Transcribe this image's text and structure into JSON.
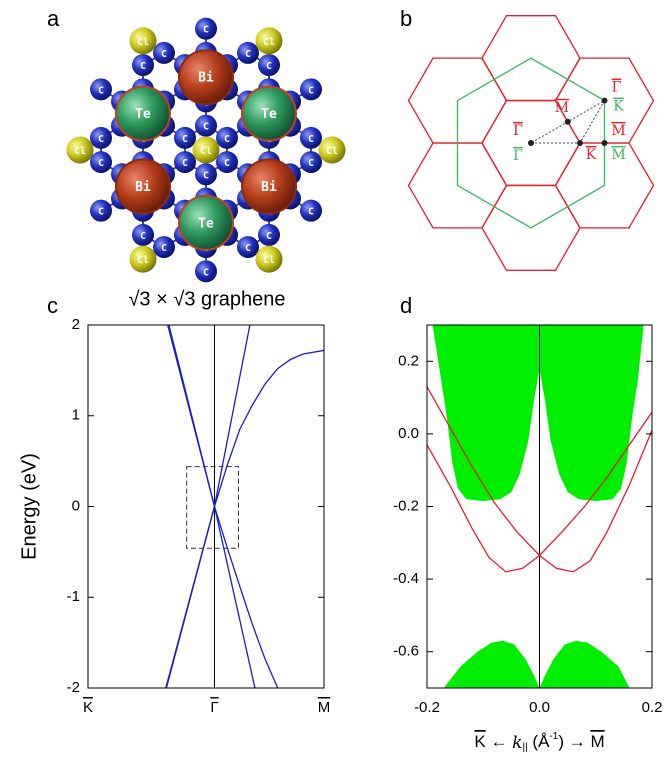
{
  "panel_a": {
    "letter": "a",
    "elements": [
      "Bi",
      "Te",
      "C",
      "Cl"
    ]
  },
  "panel_b": {
    "letter": "b",
    "red": "#e0202a",
    "green": "#3cb55a",
    "path_color": "#2c3ca0",
    "labels": [
      {
        "text": "Γ",
        "color": "#e0202a"
      },
      {
        "text": "Γ",
        "color": "#3cb55a"
      },
      {
        "text": "M",
        "color": "#e0202a"
      },
      {
        "text": "K",
        "color": "#e0202a"
      },
      {
        "text": "Γ",
        "color": "#e0202a"
      },
      {
        "text": "K",
        "color": "#3cb55a"
      },
      {
        "text": "M",
        "color": "#e0202a"
      },
      {
        "text": "M",
        "color": "#3cb55a"
      }
    ]
  },
  "chart_data": [
    {
      "type": "line",
      "letter": "c",
      "title": "√3 × √3 graphene",
      "ylabel": "Energy (eV)",
      "xlim": [
        -1,
        0.866
      ],
      "xticks": [
        {
          "value": -1,
          "label": "K"
        },
        {
          "value": 0,
          "label": "Γ"
        },
        {
          "value": 0.866,
          "label": "M"
        }
      ],
      "ylim": [
        -2,
        2
      ],
      "yticks": [
        -2,
        -1,
        0,
        1,
        2
      ],
      "vline": 0,
      "series": [
        {
          "color": "#1c1ccc",
          "x": [
            -0.37,
            0,
            0.32
          ],
          "values": [
            2,
            0,
            -2
          ]
        },
        {
          "color": "#1c1ccc",
          "x": [
            -0.385,
            0,
            0.28
          ],
          "values": [
            -2,
            0,
            2
          ]
        },
        {
          "color": "#1c1ccc",
          "x": [
            -0.36,
            0,
            0.1,
            0.2,
            0.3,
            0.4,
            0.5
          ],
          "values": [
            2,
            0,
            -0.45,
            -0.88,
            -1.3,
            -1.68,
            -2
          ]
        },
        {
          "color": "#1c1ccc",
          "x": [
            -0.38,
            0,
            0.1,
            0.2,
            0.3,
            0.4,
            0.5,
            0.6,
            0.7,
            0.866
          ],
          "values": [
            -2,
            0,
            0.45,
            0.85,
            1.12,
            1.35,
            1.52,
            1.62,
            1.68,
            1.72
          ]
        }
      ],
      "inset_box": {
        "x": [
          -0.22,
          0.19
        ],
        "y": [
          -0.46,
          0.44
        ]
      }
    },
    {
      "type": "line",
      "letter": "d",
      "xlabel": [
        "K",
        " ← ",
        "k",
        "||",
        " (Å",
        "-1",
        ") → ",
        "M"
      ],
      "xlim": [
        -0.2,
        0.2
      ],
      "xticks": [
        -0.2,
        {
          "value": 0,
          "label": "0.0"
        },
        0.2
      ],
      "ylim": [
        -0.7,
        0.3
      ],
      "yticks": [
        -0.6,
        -0.4,
        -0.2,
        {
          "value": 0,
          "label": "0.0"
        },
        0.2
      ],
      "vline": 0,
      "regions": [
        {
          "color": "#00ee00",
          "x": [
            -0.19,
            -0.175,
            -0.165,
            -0.155,
            -0.145,
            -0.13,
            -0.1,
            -0.07,
            -0.05,
            -0.035,
            -0.02,
            -0.01,
            0,
            0.01,
            0.02,
            0.035,
            0.05,
            0.07,
            0.1,
            0.13,
            0.145,
            0.155,
            0.165,
            0.175,
            0.185
          ],
          "y": [
            0.3,
            0.15,
            0.05,
            -0.08,
            -0.15,
            -0.18,
            -0.185,
            -0.18,
            -0.16,
            -0.11,
            -0.02,
            0.09,
            0.18,
            0.09,
            -0.02,
            -0.11,
            -0.16,
            -0.18,
            -0.185,
            -0.18,
            -0.15,
            -0.08,
            0.05,
            0.15,
            0.3
          ]
        },
        {
          "color": "#00ee00",
          "x": [
            -0.17,
            -0.14,
            -0.11,
            -0.085,
            -0.065,
            -0.045,
            -0.025,
            -0.01,
            0,
            0.01,
            0.025,
            0.045,
            0.065,
            0.085,
            0.11,
            0.14,
            0.16
          ],
          "y": [
            -0.7,
            -0.64,
            -0.6,
            -0.575,
            -0.57,
            -0.58,
            -0.62,
            -0.665,
            -0.7,
            -0.665,
            -0.62,
            -0.58,
            -0.57,
            -0.575,
            -0.6,
            -0.64,
            -0.7
          ]
        }
      ],
      "series": [
        {
          "color": "#e0202a",
          "x": [
            -0.2,
            -0.16,
            -0.12,
            -0.08,
            -0.04,
            0,
            0.03,
            0.06,
            0.09,
            0.12,
            0.16,
            0.2
          ],
          "values": [
            0.13,
            0.02,
            -0.09,
            -0.19,
            -0.27,
            -0.335,
            -0.37,
            -0.38,
            -0.35,
            -0.27,
            -0.14,
            0.01
          ]
        },
        {
          "color": "#e0202a",
          "x": [
            -0.2,
            -0.16,
            -0.12,
            -0.09,
            -0.06,
            -0.03,
            0,
            0.04,
            0.08,
            0.12,
            0.16,
            0.2
          ],
          "values": [
            -0.03,
            -0.14,
            -0.26,
            -0.34,
            -0.38,
            -0.37,
            -0.335,
            -0.27,
            -0.2,
            -0.12,
            -0.03,
            0.06
          ]
        }
      ]
    }
  ]
}
